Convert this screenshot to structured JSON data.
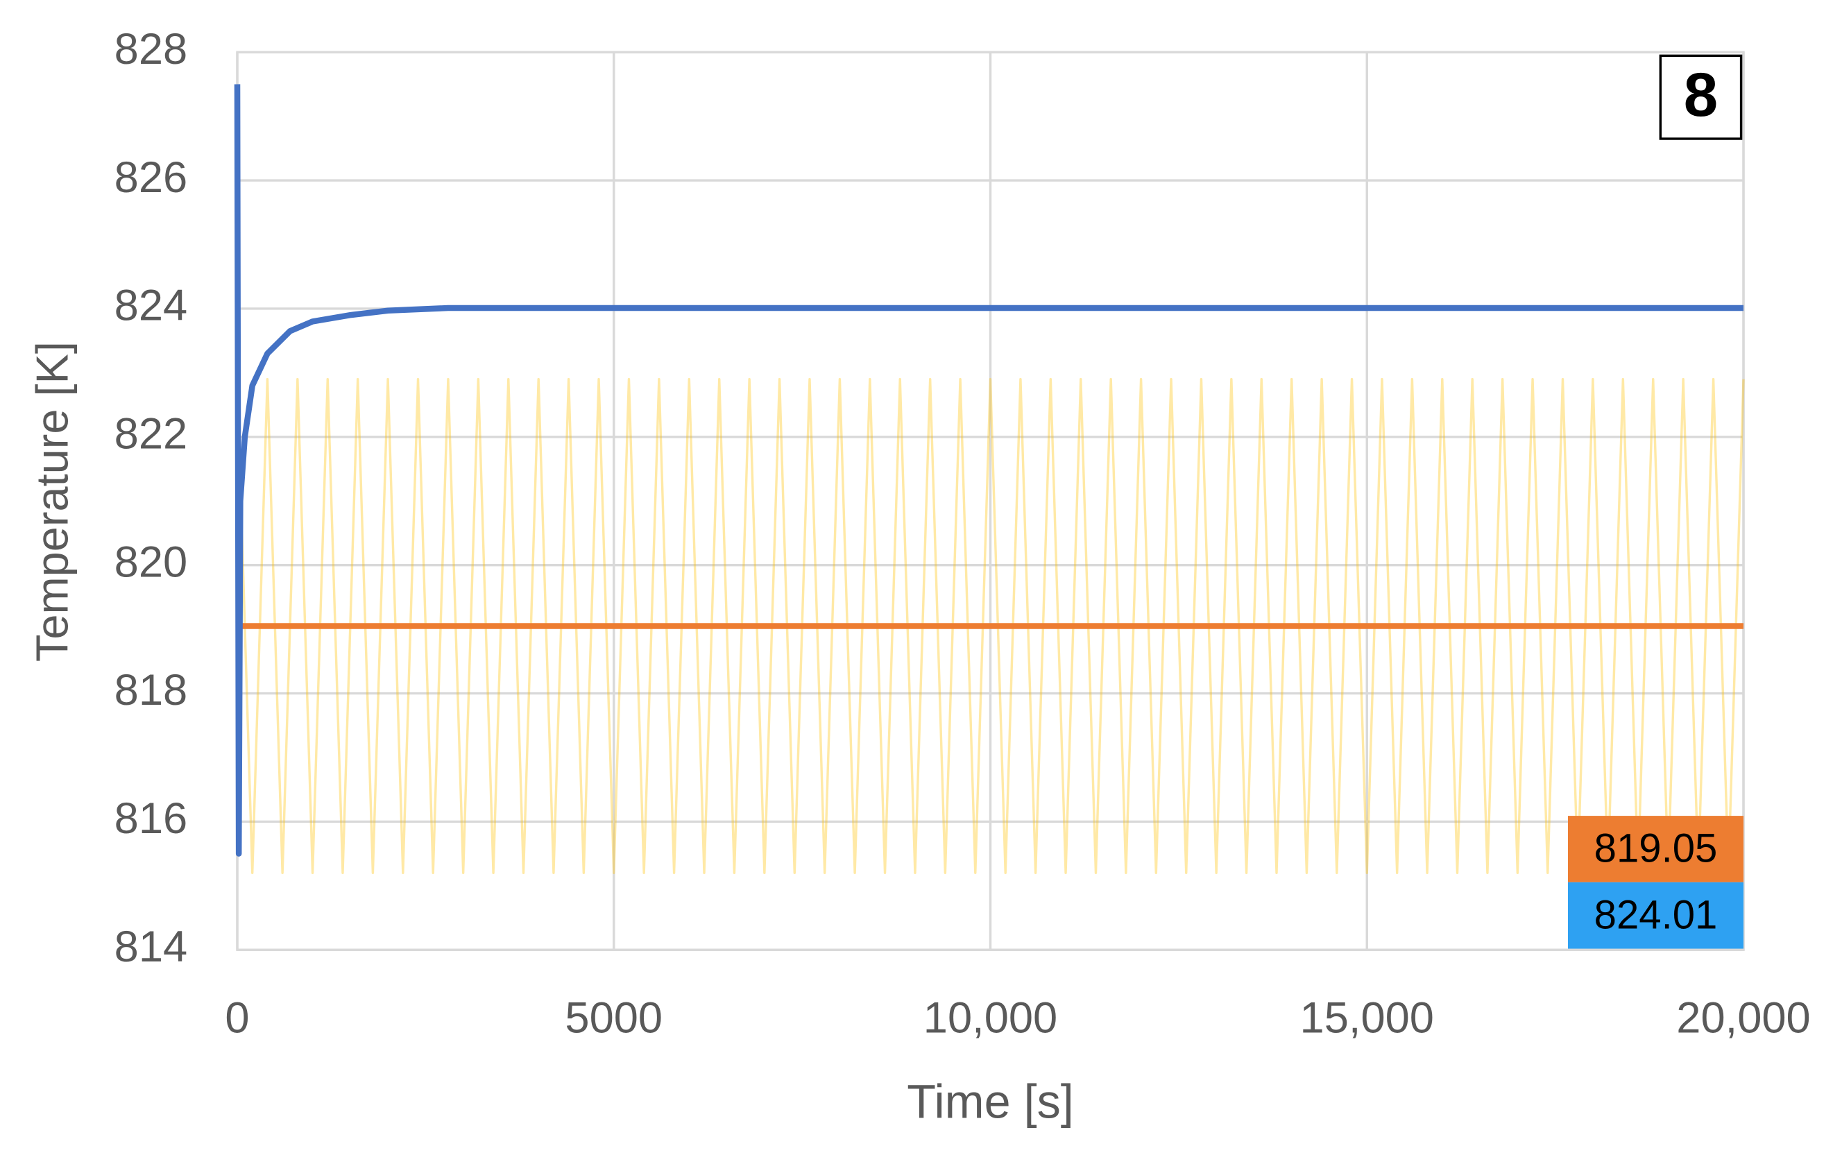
{
  "chart_data": {
    "type": "line",
    "x_label": "Time [s]",
    "y_label": "Temperature [K]",
    "xlim": [
      0,
      20000
    ],
    "ylim": [
      814,
      828
    ],
    "xticks": [
      0,
      5000,
      {
        "value": 10000,
        "label": "10,000"
      },
      {
        "value": 15000,
        "label": "15,000"
      },
      {
        "value": 20000,
        "label": "20,000"
      }
    ],
    "yticks": [
      814,
      816,
      818,
      820,
      822,
      824,
      826,
      828
    ],
    "grid": true,
    "panel_label": "8",
    "annotations": [
      {
        "text": "819.05",
        "color": "#ed7d31"
      },
      {
        "text": "824.01",
        "color": "#2ea1f2"
      }
    ],
    "series": [
      {
        "color": "#ffc000",
        "x": [
          0,
          200,
          400,
          600,
          800,
          1000,
          1200,
          1400,
          1600,
          1800,
          2000,
          2200,
          2400,
          2600,
          2800,
          3000,
          3200,
          3400,
          3600,
          3800,
          4000,
          4200,
          4400,
          4600,
          4800,
          5000,
          5200,
          5400,
          5600,
          5800,
          6000,
          6200,
          6400,
          6600,
          6800,
          7000,
          7200,
          7400,
          7600,
          7800,
          8000,
          8200,
          8400,
          8600,
          8800,
          9000,
          9200,
          9400,
          9600,
          9800,
          10000,
          10200,
          10400,
          10600,
          10800,
          11000,
          11200,
          11400,
          11600,
          11800,
          12000,
          12200,
          12400,
          12600,
          12800,
          13000,
          13200,
          13400,
          13600,
          13800,
          14000,
          14200,
          14400,
          14600,
          14800,
          15000,
          15200,
          15400,
          15600,
          15800,
          16000,
          16200,
          16400,
          16600,
          16800,
          17000,
          17200,
          17400,
          17600,
          17800,
          18000,
          18200,
          18400,
          18600,
          18800,
          19000,
          19200,
          19400,
          19600,
          19800,
          20000
        ],
        "values": [
          822.9,
          815.2,
          822.9,
          815.2,
          822.9,
          815.2,
          822.9,
          815.2,
          822.9,
          815.2,
          822.9,
          815.2,
          822.9,
          815.2,
          822.9,
          815.2,
          822.9,
          815.2,
          822.9,
          815.2,
          822.9,
          815.2,
          822.9,
          815.2,
          822.9,
          815.2,
          822.9,
          815.2,
          822.9,
          815.2,
          822.9,
          815.2,
          822.9,
          815.2,
          822.9,
          815.2,
          822.9,
          815.2,
          822.9,
          815.2,
          822.9,
          815.2,
          822.9,
          815.2,
          822.9,
          815.2,
          822.9,
          815.2,
          822.9,
          815.2,
          822.9,
          815.2,
          822.9,
          815.2,
          822.9,
          815.2,
          822.9,
          815.2,
          822.9,
          815.2,
          822.9,
          815.2,
          822.9,
          815.2,
          822.9,
          815.2,
          822.9,
          815.2,
          822.9,
          815.2,
          822.9,
          815.2,
          822.9,
          815.2,
          822.9,
          815.2,
          822.9,
          815.2,
          822.9,
          815.2,
          822.9,
          815.2,
          822.9,
          815.2,
          822.9,
          815.2,
          822.9,
          815.2,
          822.9,
          815.2,
          822.9,
          815.2,
          822.9,
          815.2,
          822.9,
          815.2,
          822.9,
          815.2,
          822.9,
          815.2,
          822.9
        ]
      },
      {
        "color": "#ed7d31",
        "x": [
          0,
          20000
        ],
        "values": [
          819.05,
          819.05
        ]
      },
      {
        "color": "#4472c4",
        "x": [
          0,
          20,
          40,
          100,
          200,
          400,
          700,
          1000,
          1500,
          2000,
          2800,
          20000
        ],
        "values": [
          827.5,
          815.5,
          821,
          822,
          822.8,
          823.3,
          823.65,
          823.8,
          823.9,
          823.97,
          824.01,
          824.01
        ]
      }
    ]
  }
}
